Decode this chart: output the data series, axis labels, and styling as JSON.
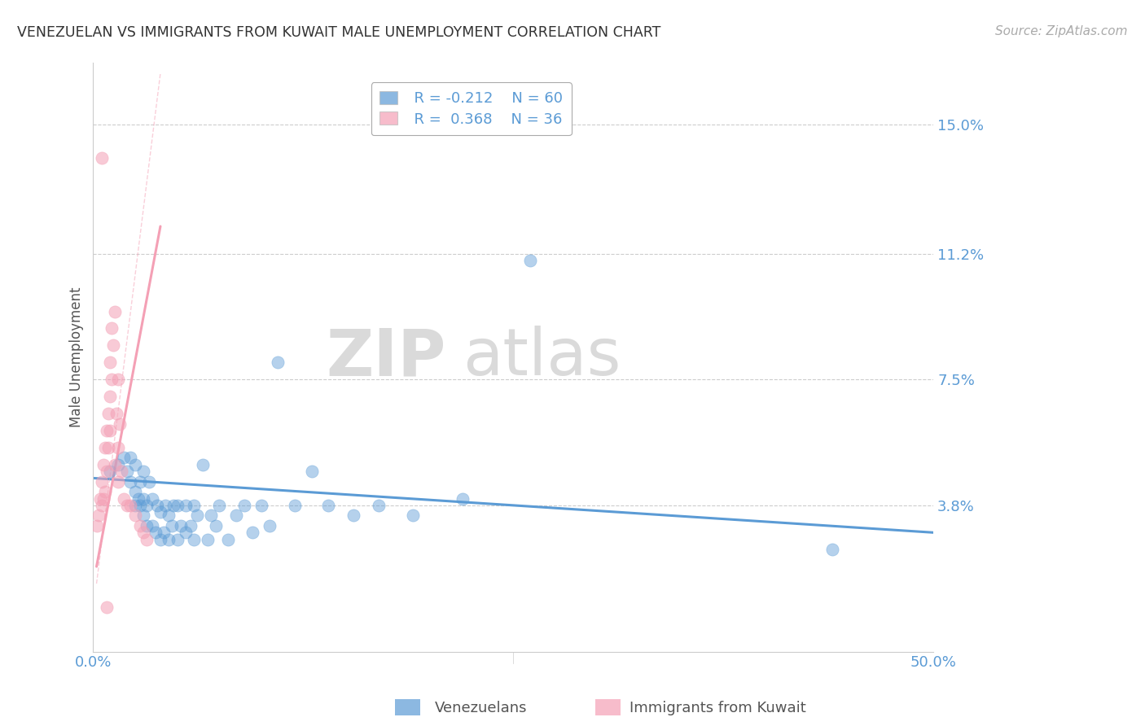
{
  "title": "VENEZUELAN VS IMMIGRANTS FROM KUWAIT MALE UNEMPLOYMENT CORRELATION CHART",
  "source": "Source: ZipAtlas.com",
  "ylabel": "Male Unemployment",
  "xlim": [
    0.0,
    0.5
  ],
  "ylim": [
    -0.005,
    0.168
  ],
  "yticks": [
    0.038,
    0.075,
    0.112,
    0.15
  ],
  "ytick_labels": [
    "3.8%",
    "7.5%",
    "11.2%",
    "15.0%"
  ],
  "xticks": [
    0.0,
    0.5
  ],
  "xtick_labels": [
    "0.0%",
    "50.0%"
  ],
  "blue_color": "#5B9BD5",
  "pink_color": "#F4A0B5",
  "legend_R1": "R = -0.212",
  "legend_N1": "N = 60",
  "legend_R2": "R =  0.368",
  "legend_N2": "N = 36",
  "watermark_zip": "ZIP",
  "watermark_atlas": "atlas",
  "blue_scatter_x": [
    0.01,
    0.015,
    0.018,
    0.02,
    0.022,
    0.022,
    0.025,
    0.025,
    0.025,
    0.027,
    0.028,
    0.028,
    0.03,
    0.03,
    0.03,
    0.032,
    0.032,
    0.033,
    0.035,
    0.035,
    0.037,
    0.038,
    0.04,
    0.04,
    0.042,
    0.043,
    0.045,
    0.045,
    0.047,
    0.048,
    0.05,
    0.05,
    0.052,
    0.055,
    0.055,
    0.058,
    0.06,
    0.06,
    0.062,
    0.065,
    0.068,
    0.07,
    0.073,
    0.075,
    0.08,
    0.085,
    0.09,
    0.095,
    0.1,
    0.105,
    0.11,
    0.12,
    0.13,
    0.14,
    0.155,
    0.17,
    0.19,
    0.22,
    0.26,
    0.44
  ],
  "blue_scatter_y": [
    0.048,
    0.05,
    0.052,
    0.048,
    0.045,
    0.052,
    0.038,
    0.042,
    0.05,
    0.04,
    0.038,
    0.045,
    0.035,
    0.04,
    0.048,
    0.032,
    0.038,
    0.045,
    0.032,
    0.04,
    0.03,
    0.038,
    0.028,
    0.036,
    0.03,
    0.038,
    0.028,
    0.035,
    0.032,
    0.038,
    0.028,
    0.038,
    0.032,
    0.03,
    0.038,
    0.032,
    0.028,
    0.038,
    0.035,
    0.05,
    0.028,
    0.035,
    0.032,
    0.038,
    0.028,
    0.035,
    0.038,
    0.03,
    0.038,
    0.032,
    0.08,
    0.038,
    0.048,
    0.038,
    0.035,
    0.038,
    0.035,
    0.04,
    0.11,
    0.025
  ],
  "pink_scatter_x": [
    0.002,
    0.003,
    0.004,
    0.005,
    0.005,
    0.006,
    0.006,
    0.007,
    0.007,
    0.008,
    0.008,
    0.009,
    0.009,
    0.01,
    0.01,
    0.01,
    0.011,
    0.011,
    0.012,
    0.013,
    0.013,
    0.014,
    0.015,
    0.015,
    0.015,
    0.016,
    0.017,
    0.018,
    0.02,
    0.022,
    0.025,
    0.028,
    0.03,
    0.032,
    0.005,
    0.008
  ],
  "pink_scatter_y": [
    0.032,
    0.035,
    0.04,
    0.038,
    0.045,
    0.04,
    0.05,
    0.042,
    0.055,
    0.048,
    0.06,
    0.055,
    0.065,
    0.06,
    0.07,
    0.08,
    0.075,
    0.09,
    0.085,
    0.095,
    0.05,
    0.065,
    0.045,
    0.055,
    0.075,
    0.062,
    0.048,
    0.04,
    0.038,
    0.038,
    0.035,
    0.032,
    0.03,
    0.028,
    0.14,
    0.008
  ],
  "blue_trend_x": [
    0.0,
    0.5
  ],
  "blue_trend_y": [
    0.046,
    0.03
  ],
  "pink_trend_x": [
    0.002,
    0.04
  ],
  "pink_trend_y": [
    0.02,
    0.12
  ]
}
